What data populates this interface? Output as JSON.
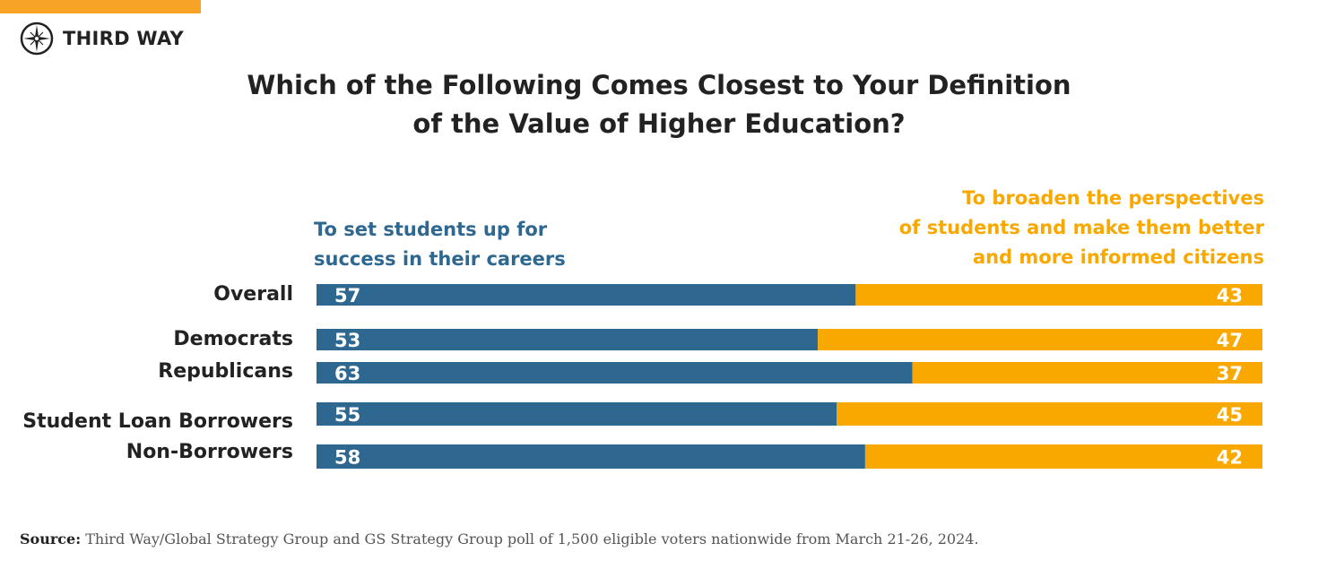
{
  "brand": {
    "name": "THIRD WAY",
    "accent": "#f7a325"
  },
  "chart_data": {
    "type": "bar",
    "stacked": true,
    "orientation": "horizontal",
    "title": "Which of the Following Comes Closest to Your Definition of the Value of Higher Education?",
    "title_lines": [
      "Which of the Following Comes Closest to Your Definition",
      "of the Value of Higher Education?"
    ],
    "categories": [
      "Overall",
      "Democrats",
      "Republicans",
      "Student Loan Borrowers",
      "Non-Borrowers"
    ],
    "series": [
      {
        "name": "To set students up for success in their careers",
        "name_lines": [
          "To set students up for",
          "success in their careers"
        ],
        "color": "#2e6891",
        "values": [
          57,
          53,
          63,
          55,
          58
        ]
      },
      {
        "name": "To broaden the perspectives of students and make them better and more informed citizens",
        "name_lines": [
          "To broaden the perspectives",
          "of students and make them better",
          "and more informed citizens"
        ],
        "color": "#f9a800",
        "values": [
          43,
          47,
          37,
          45,
          42
        ]
      }
    ],
    "xlim": [
      0,
      100
    ],
    "grid": false,
    "legend": "top"
  },
  "source": {
    "label": "Source:",
    "text": " Third Way/Global Strategy Group and GS Strategy Group poll of 1,500 eligible voters nationwide from March 21-26, 2024."
  }
}
